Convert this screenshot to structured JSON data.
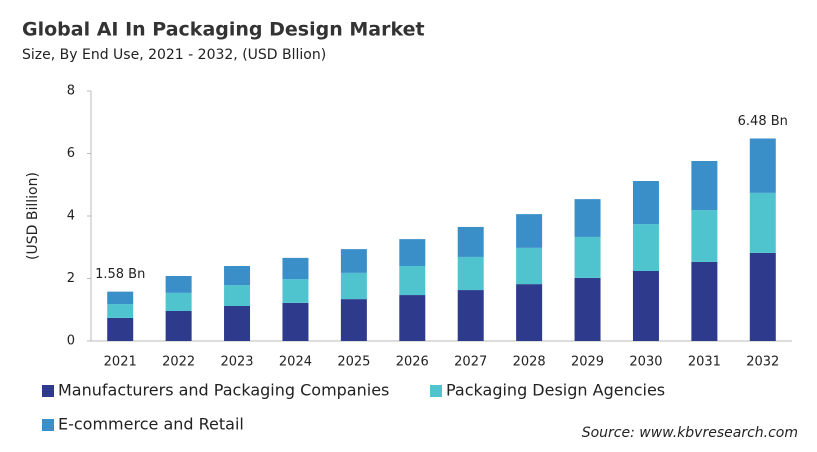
{
  "chart_data": {
    "type": "stacked_bar",
    "title": "Global AI In Packaging Design Market",
    "subtitle": "Size, By End Use, 2021 - 2032, (USD Bllion)",
    "y_label": "(USD Billion)",
    "source": "Source: www.kbvresearch.com",
    "categories": [
      "2021",
      "2022",
      "2023",
      "2024",
      "2025",
      "2026",
      "2027",
      "2028",
      "2029",
      "2030",
      "2031",
      "2032"
    ],
    "series": [
      {
        "name": "Manufacturers and Packaging Companies",
        "color": "#2e3a8c",
        "values": [
          0.74,
          0.96,
          1.12,
          1.22,
          1.34,
          1.47,
          1.63,
          1.82,
          2.02,
          2.24,
          2.53,
          2.82
        ]
      },
      {
        "name": "Packaging Design Agencies",
        "color": "#4fc4cf",
        "values": [
          0.44,
          0.58,
          0.67,
          0.76,
          0.84,
          0.93,
          1.06,
          1.16,
          1.31,
          1.5,
          1.66,
          1.92
        ]
      },
      {
        "name": "E-commerce and Retail",
        "color": "#3b8fc9",
        "values": [
          0.4,
          0.54,
          0.61,
          0.68,
          0.76,
          0.86,
          0.96,
          1.08,
          1.21,
          1.38,
          1.57,
          1.74
        ]
      }
    ],
    "annotations": [
      {
        "category": "2021",
        "value": 1.58,
        "label": "1.58 Bn"
      },
      {
        "category": "2032",
        "value": 6.48,
        "label": "6.48 Bn"
      }
    ],
    "ylim": [
      0,
      8
    ],
    "yticks": [
      0,
      2,
      4,
      6,
      8
    ],
    "grid": false
  }
}
